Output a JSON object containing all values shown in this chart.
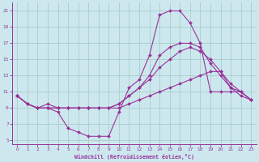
{
  "xlabel": "Windchill (Refroidissement éolien,°C)",
  "background_color": "#cce8ee",
  "grid_color": "#aacccc",
  "line_color": "#993399",
  "xlim": [
    -0.5,
    23.5
  ],
  "ylim": [
    4.5,
    22
  ],
  "xticks": [
    0,
    1,
    2,
    3,
    4,
    5,
    6,
    7,
    8,
    9,
    10,
    11,
    12,
    13,
    14,
    15,
    16,
    17,
    18,
    19,
    20,
    21,
    22,
    23
  ],
  "yticks": [
    5,
    7,
    9,
    11,
    13,
    15,
    17,
    19,
    21
  ],
  "hours": [
    0,
    1,
    2,
    3,
    4,
    5,
    6,
    7,
    8,
    9,
    10,
    11,
    12,
    13,
    14,
    15,
    16,
    17,
    18,
    19,
    20,
    21,
    22,
    23
  ],
  "curve1": [
    10.5,
    9.5,
    9.0,
    9.0,
    8.5,
    6.5,
    6.0,
    5.5,
    5.5,
    5.5,
    8.5,
    11.5,
    12.5,
    15.5,
    20.5,
    21.0,
    21.0,
    19.5,
    17.0,
    11.0,
    11.0,
    11.0,
    11.0,
    10.0
  ],
  "curve2": [
    10.5,
    9.5,
    9.0,
    9.5,
    9.0,
    9.0,
    9.0,
    9.0,
    9.0,
    9.0,
    9.5,
    10.5,
    11.5,
    13.0,
    15.5,
    16.5,
    17.0,
    17.0,
    16.5,
    14.5,
    13.0,
    11.5,
    11.0,
    10.0
  ],
  "curve3": [
    10.5,
    9.5,
    9.0,
    9.0,
    9.0,
    9.0,
    9.0,
    9.0,
    9.0,
    9.0,
    9.5,
    10.5,
    11.5,
    12.5,
    14.0,
    15.0,
    16.0,
    16.5,
    16.0,
    15.0,
    13.5,
    12.0,
    11.0,
    10.0
  ],
  "curve4": [
    10.5,
    9.5,
    9.0,
    9.0,
    9.0,
    9.0,
    9.0,
    9.0,
    9.0,
    9.0,
    9.0,
    9.5,
    10.0,
    10.5,
    11.0,
    11.5,
    12.0,
    12.5,
    13.0,
    13.5,
    13.5,
    11.5,
    10.5,
    10.0
  ]
}
